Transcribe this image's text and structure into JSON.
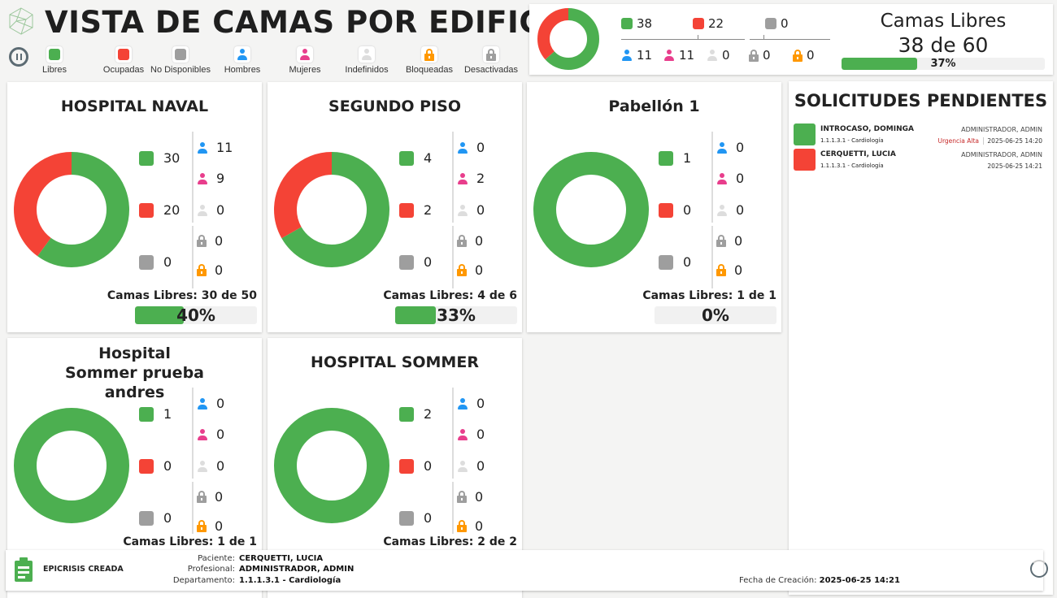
{
  "header": {
    "title": "VISTA DE CAMAS POR EDIFICIO",
    "logo": "network-globe-logo"
  },
  "legend": [
    {
      "label": "Libres",
      "icon": "square",
      "color": "#4caf50"
    },
    {
      "label": "Ocupadas",
      "icon": "square",
      "color": "#f44336"
    },
    {
      "label": "No Disponibles",
      "icon": "square",
      "color": "#9e9e9e"
    },
    {
      "label": "Hombres",
      "icon": "person",
      "color": "#2196f3"
    },
    {
      "label": "Mujeres",
      "icon": "person",
      "color": "#e83e8c"
    },
    {
      "label": "Indefinidos",
      "icon": "person",
      "color": "#dddddd"
    },
    {
      "label": "Bloqueadas",
      "icon": "lock",
      "color": "#ff9800"
    },
    {
      "label": "Desactivadas",
      "icon": "lock",
      "color": "#9e9e9e"
    }
  ],
  "colors": {
    "libres": "#4caf50",
    "ocupadas": "#f44336",
    "no_disponibles": "#9e9e9e",
    "hombres": "#2196f3",
    "mujeres": "#e83e8c",
    "indefinidos": "#dddddd",
    "bloqueadas": "#ff9800",
    "desactivadas": "#9e9e9e"
  },
  "summary": {
    "libres": "38",
    "ocupadas": "22",
    "no_disponibles": "0",
    "hombres": "11",
    "mujeres": "11",
    "indefinidos": "0",
    "desactivadas": "0",
    "bloqueadas": "0",
    "title": "Camas Libres",
    "count": "38 de 60",
    "percent": 37,
    "percent_label": "37%"
  },
  "buildings": [
    {
      "name": "HOSPITAL NAVAL",
      "libres": 30,
      "ocupadas": 20,
      "no_disponibles": 0,
      "hombres": 11,
      "mujeres": 9,
      "indefinidos": 0,
      "desactivadas": 0,
      "bloqueadas": 0,
      "camas_libres": "Camas Libres: 30 de 50",
      "percent": 40,
      "percent_label": "40%"
    },
    {
      "name": "SEGUNDO PISO",
      "libres": 4,
      "ocupadas": 2,
      "no_disponibles": 0,
      "hombres": 0,
      "mujeres": 2,
      "indefinidos": 0,
      "desactivadas": 0,
      "bloqueadas": 0,
      "camas_libres": "Camas Libres: 4 de 6",
      "percent": 33,
      "percent_label": "33%"
    },
    {
      "name": "Pabellón 1",
      "libres": 1,
      "ocupadas": 0,
      "no_disponibles": 0,
      "hombres": 0,
      "mujeres": 0,
      "indefinidos": 0,
      "desactivadas": 0,
      "bloqueadas": 0,
      "camas_libres": "Camas Libres: 1 de 1",
      "percent": 0,
      "percent_label": "0%"
    },
    {
      "name": "Hospital Sommer prueba andres",
      "libres": 1,
      "ocupadas": 0,
      "no_disponibles": 0,
      "hombres": 0,
      "mujeres": 0,
      "indefinidos": 0,
      "desactivadas": 0,
      "bloqueadas": 0,
      "camas_libres": "Camas Libres: 1 de 1",
      "percent": null,
      "percent_label": ""
    },
    {
      "name": "HOSPITAL SOMMER",
      "libres": 2,
      "ocupadas": 0,
      "no_disponibles": 0,
      "hombres": 0,
      "mujeres": 0,
      "indefinidos": 0,
      "desactivadas": 0,
      "bloqueadas": 0,
      "camas_libres": "Camas Libres: 2 de 2",
      "percent": null,
      "percent_label": ""
    }
  ],
  "solicitudes": {
    "title": "SOLICITUDES PENDIENTES",
    "items": [
      {
        "name": "INTROCASO, DOMINGA",
        "dept": "1.1.1.3.1 - Cardiología",
        "author": "ADMINISTRADOR, ADMIN",
        "urgency": "Urgencia Alta",
        "time": "2025-06-25 14:20",
        "color": "#4caf50"
      },
      {
        "name": "CERQUETTI, LUCIA",
        "dept": "1.1.1.3.1 - Cardiología",
        "author": "ADMINISTRADOR, ADMIN",
        "urgency": "",
        "time": "2025-06-25 14:21",
        "color": "#f44336"
      }
    ]
  },
  "notification": {
    "title": "EPICRISIS CREADA",
    "paciente_label": "Paciente:",
    "paciente": "CERQUETTI, LUCIA",
    "profesional_label": "Profesional:",
    "profesional": "ADMINISTRADOR, ADMIN",
    "departamento_label": "Departamento:",
    "departamento": "1.1.1.3.1 - Cardiología",
    "fecha_label": "Fecha de Creación:",
    "fecha": "2025-06-25 14:21"
  }
}
